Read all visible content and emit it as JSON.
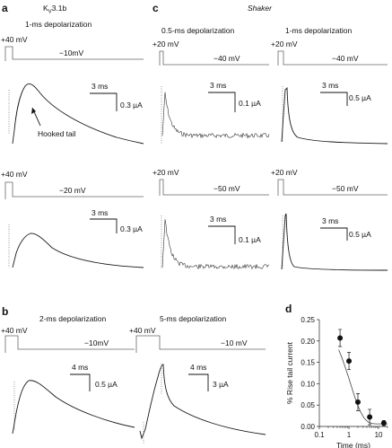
{
  "panels": {
    "a": {
      "letter": "a",
      "channel_main": "K",
      "channel_sub": "V",
      "channel_suffix": "3.1b",
      "protocol": "1-ms depolarization",
      "top_hold": "+40 mV",
      "top_step": "−10mV",
      "top_time_bar": "3 ms",
      "top_current_bar": "0.3 µA",
      "annotation": "Hooked tail",
      "bottom_hold": "+40 mV",
      "bottom_step": "−20 mV",
      "bottom_time_bar": "3 ms",
      "bottom_current_bar": "0.3 µA"
    },
    "c": {
      "letter": "c",
      "channel": "Shaker",
      "left_protocol": "0.5-ms depolarization",
      "right_protocol": "1-ms depolarization",
      "tl_hold": "+20 mV",
      "tl_step": "−40 mV",
      "tl_time_bar": "3 ms",
      "tl_current_bar": "0.1 µA",
      "tr_hold": "+20 mV",
      "tr_step": "−40 mV",
      "tr_time_bar": "3 ms",
      "tr_current_bar": "0.5 µA",
      "bl_hold": "+20 mV",
      "bl_step": "−50 mV",
      "bl_time_bar": "3 ms",
      "bl_current_bar": "0.1 µA",
      "br_hold": "+20 mV",
      "br_step": "−50 mV",
      "br_time_bar": "3 ms",
      "br_current_bar": "0.5 µA"
    },
    "b": {
      "letter": "b",
      "left_protocol": "2-ms depolarization",
      "right_protocol": "5-ms depolarization",
      "left_hold": "+40 mV",
      "left_step": "−10mV",
      "left_time_bar": "4 ms",
      "left_current_bar": "0.5 µA",
      "right_hold": "+40 mV",
      "right_step": "−10 mV",
      "right_time_bar": "4 ms",
      "right_current_bar": "3 µA"
    },
    "d": {
      "letter": "d"
    }
  },
  "chart_data": {
    "type": "scatter",
    "xlabel": "Time (ms)",
    "ylabel": "% Rise tail current",
    "x_scale": "log",
    "xlim": [
      0.1,
      20
    ],
    "ylim": [
      0,
      0.25
    ],
    "x_ticks": [
      "0.1",
      "1",
      "10"
    ],
    "y_ticks": [
      "0.00",
      "0.05",
      "0.10",
      "0.15",
      "0.20",
      "0.25"
    ],
    "x": [
      0.5,
      1,
      2,
      5,
      15
    ],
    "y": [
      0.207,
      0.153,
      0.057,
      0.022,
      0.008
    ],
    "y_err": [
      0.02,
      0.02,
      0.02,
      0.018,
      0.006
    ],
    "fit": "single exponential decay",
    "grid": false
  }
}
